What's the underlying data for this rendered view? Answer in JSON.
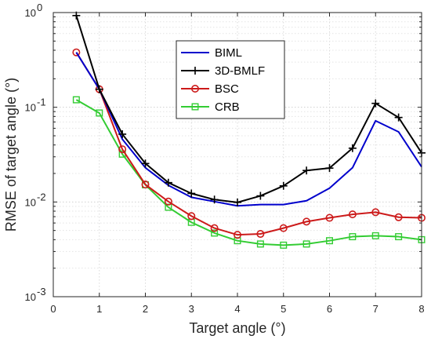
{
  "chart_data": {
    "type": "line",
    "title": "",
    "xlabel": "Target angle (°)",
    "ylabel": "RMSE of target angle (°)",
    "xlim": [
      0,
      8
    ],
    "ylim": [
      0.001,
      1
    ],
    "yscale": "log",
    "grid": true,
    "legend_position": "top-center",
    "x_ticks": [
      {
        "value": 0,
        "label": "0"
      },
      {
        "value": 1,
        "label": "1"
      },
      {
        "value": 2,
        "label": "2"
      },
      {
        "value": 3,
        "label": "3"
      },
      {
        "value": 4,
        "label": "4"
      },
      {
        "value": 5,
        "label": "5"
      },
      {
        "value": 6,
        "label": "6"
      },
      {
        "value": 7,
        "label": "7"
      },
      {
        "value": 8,
        "label": "8"
      }
    ],
    "y_ticks": [
      {
        "value": 0.001,
        "base": "10",
        "exp": "-3"
      },
      {
        "value": 0.01,
        "base": "10",
        "exp": "-2"
      },
      {
        "value": 0.1,
        "base": "10",
        "exp": "-1"
      },
      {
        "value": 1,
        "base": "10",
        "exp": "0"
      }
    ],
    "x": [
      0.5,
      1,
      1.5,
      2,
      2.5,
      3,
      3.5,
      4,
      4.5,
      5,
      5.5,
      6,
      6.5,
      7,
      7.5,
      8
    ],
    "series": [
      {
        "name": "BIML",
        "color": "#0000cc",
        "marker": "none",
        "values": [
          0.38,
          0.155,
          0.046,
          0.023,
          0.015,
          0.0112,
          0.0101,
          0.0091,
          0.0094,
          0.0094,
          0.0103,
          0.014,
          0.023,
          0.072,
          0.055,
          0.0235
        ]
      },
      {
        "name": "3D-BMLF",
        "color": "#000000",
        "marker": "plus",
        "values": [
          0.93,
          0.155,
          0.052,
          0.0255,
          0.016,
          0.0123,
          0.0106,
          0.0099,
          0.0116,
          0.0148,
          0.0215,
          0.0228,
          0.037,
          0.11,
          0.078,
          0.033
        ]
      },
      {
        "name": "BSC",
        "color": "#cc1a1a",
        "marker": "circle",
        "values": [
          0.38,
          0.155,
          0.036,
          0.0153,
          0.0101,
          0.0071,
          0.0053,
          0.0045,
          0.0046,
          0.0053,
          0.0062,
          0.0068,
          0.0074,
          0.0078,
          0.0069,
          0.0068
        ]
      },
      {
        "name": "CRB",
        "color": "#33cc33",
        "marker": "square",
        "values": [
          0.12,
          0.087,
          0.032,
          0.0152,
          0.0088,
          0.0061,
          0.0047,
          0.0039,
          0.0036,
          0.0035,
          0.0036,
          0.0039,
          0.0043,
          0.0044,
          0.0043,
          0.004
        ]
      }
    ]
  }
}
